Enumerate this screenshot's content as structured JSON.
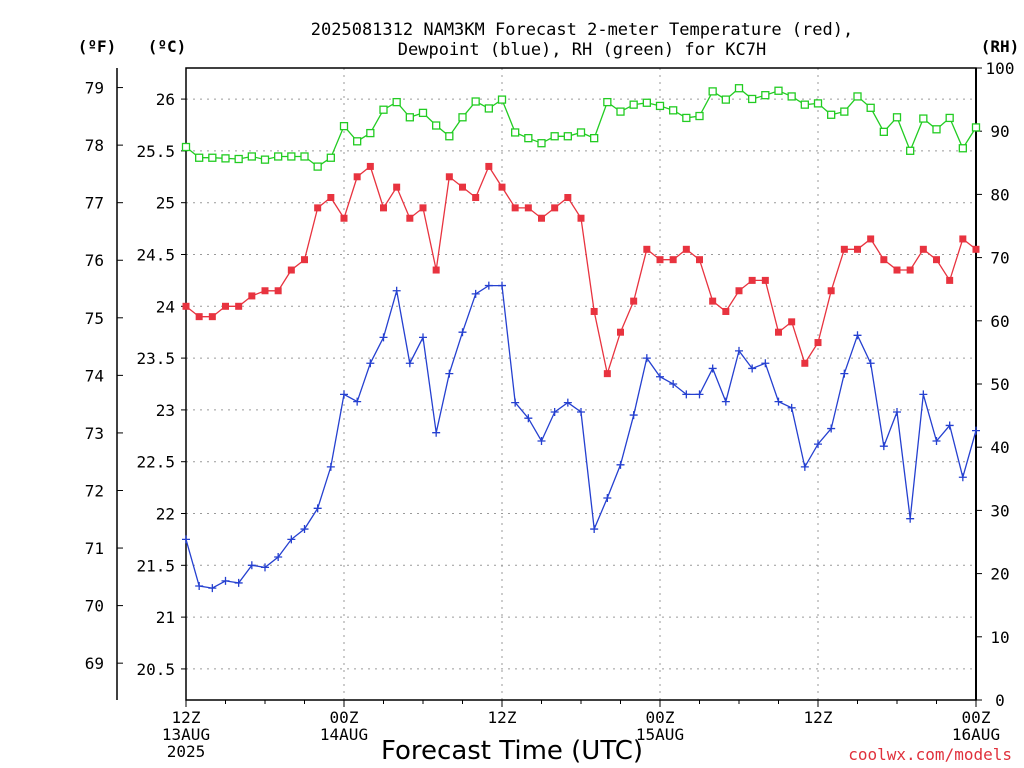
{
  "chart_data": {
    "type": "line",
    "title_lines": [
      "2025081312 NAM3KM Forecast 2-meter Temperature (red),",
      "Dewpoint (blue), RH (green) for KC7H"
    ],
    "xlabel": "Forecast Time (UTC)",
    "credit": "coolwx.com/models",
    "units": {
      "fahrenheit": "(ºF)",
      "celsius": "(ºC)",
      "rh": "(RH)"
    },
    "x_range_hours": [
      0,
      60
    ],
    "x_ticks": [
      {
        "hour": 0,
        "lines": [
          "12Z",
          "13AUG",
          "2025"
        ]
      },
      {
        "hour": 12,
        "lines": [
          "00Z",
          "14AUG"
        ]
      },
      {
        "hour": 24,
        "lines": [
          "12Z"
        ]
      },
      {
        "hour": 36,
        "lines": [
          "00Z",
          "15AUG"
        ]
      },
      {
        "hour": 48,
        "lines": [
          "12Z"
        ]
      },
      {
        "hour": 60,
        "lines": [
          "00Z",
          "16AUG"
        ]
      }
    ],
    "celsius_axis": {
      "range": [
        20.2,
        26.3
      ],
      "ticks": [
        "20.5",
        "21",
        "21.5",
        "22",
        "22.5",
        "23",
        "23.5",
        "24",
        "24.5",
        "25",
        "25.5",
        "26"
      ]
    },
    "fahrenheit_axis": {
      "ticks": [
        "69",
        "70",
        "71",
        "72",
        "73",
        "74",
        "75",
        "76",
        "77",
        "78",
        "79"
      ]
    },
    "rh_axis": {
      "range": [
        0,
        100
      ],
      "ticks": [
        "0",
        "10",
        "20",
        "30",
        "40",
        "50",
        "60",
        "70",
        "80",
        "90",
        "100"
      ]
    },
    "grid": true,
    "colors": {
      "temperature": "#e8333f",
      "dewpoint": "#2540d0",
      "rh": "#22cc22",
      "axis": "#000000"
    },
    "series": [
      {
        "name": "Temperature",
        "axis": "celsius",
        "marker": "filled-square",
        "values": [
          24.0,
          23.9,
          23.9,
          24.0,
          24.0,
          24.1,
          24.15,
          24.15,
          24.35,
          24.45,
          24.95,
          25.05,
          24.85,
          25.25,
          25.35,
          24.95,
          25.15,
          24.85,
          24.95,
          24.35,
          25.25,
          25.15,
          25.05,
          25.35,
          25.15,
          24.95,
          24.95,
          24.85,
          24.95,
          25.05,
          24.85,
          23.95,
          23.35,
          23.75,
          24.05,
          24.55,
          24.45,
          24.45,
          24.55,
          24.45,
          24.05,
          23.95,
          24.15,
          24.25,
          24.25,
          23.75,
          23.85,
          23.45,
          23.65,
          24.15,
          24.55,
          24.55,
          24.65,
          24.45,
          24.35,
          24.35,
          24.55,
          24.45,
          24.25,
          24.65,
          24.55
        ]
      },
      {
        "name": "Dewpoint",
        "axis": "celsius",
        "marker": "plus",
        "values": [
          21.75,
          21.3,
          21.28,
          21.35,
          21.33,
          21.5,
          21.48,
          21.58,
          21.75,
          21.85,
          22.05,
          22.45,
          23.15,
          23.08,
          23.45,
          23.7,
          24.15,
          23.45,
          23.7,
          22.78,
          23.35,
          23.75,
          24.12,
          24.2,
          24.2,
          23.07,
          22.92,
          22.7,
          22.98,
          23.07,
          22.98,
          21.85,
          22.15,
          22.47,
          22.95,
          23.5,
          23.32,
          23.25,
          23.15,
          23.15,
          23.4,
          23.08,
          23.57,
          23.4,
          23.45,
          23.08,
          23.02,
          22.45,
          22.67,
          22.82,
          23.35,
          23.72,
          23.45,
          22.65,
          22.98,
          21.95,
          23.15,
          22.7,
          22.85,
          22.35,
          22.8
        ]
      },
      {
        "name": "RH",
        "axis": "rh",
        "marker": "open-square",
        "values": [
          87.5,
          85.8,
          85.8,
          85.7,
          85.6,
          86.0,
          85.5,
          86.0,
          86.0,
          86.0,
          84.4,
          85.8,
          90.8,
          88.4,
          89.7,
          93.4,
          94.6,
          92.2,
          92.9,
          90.9,
          89.2,
          92.2,
          94.7,
          93.6,
          95.0,
          89.8,
          88.9,
          88.1,
          89.2,
          89.2,
          89.8,
          88.9,
          94.6,
          93.1,
          94.2,
          94.5,
          94.0,
          93.3,
          92.1,
          92.4,
          96.3,
          95.0,
          96.8,
          95.1,
          95.7,
          96.4,
          95.5,
          94.2,
          94.4,
          92.6,
          93.1,
          95.5,
          93.7,
          89.9,
          92.2,
          86.9,
          92.0,
          90.3,
          92.1,
          87.3,
          90.6
        ]
      }
    ]
  }
}
